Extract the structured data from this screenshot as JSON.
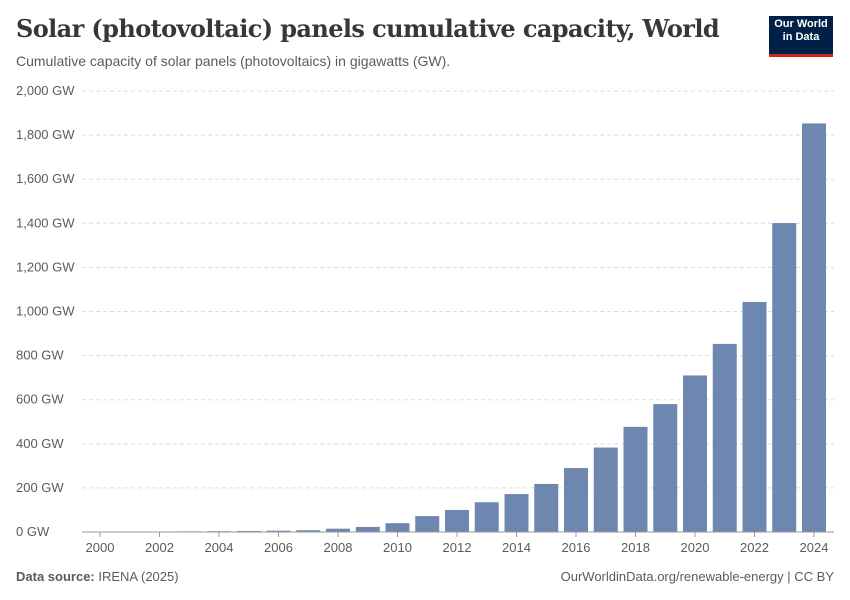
{
  "header": {
    "title": "Solar (photovoltaic) panels cumulative capacity, World",
    "subtitle": "Cumulative capacity of solar panels (photovoltaics) in gigawatts (GW).",
    "logo": "Our World in Data"
  },
  "footer": {
    "source_label": "Data source:",
    "source": "IRENA (2025)",
    "link": "OurWorldinData.org/renewable-energy | CC BY"
  },
  "colors": {
    "bar": "#6d87b0",
    "grid": "#dddddd",
    "text": "#5b5b5b"
  },
  "chart_data": {
    "type": "bar",
    "title": "Solar (photovoltaic) panels cumulative capacity, World",
    "subtitle": "Cumulative capacity of solar panels (photovoltaics) in gigawatts (GW).",
    "categories": [
      "2000",
      "2001",
      "2002",
      "2003",
      "2004",
      "2005",
      "2006",
      "2007",
      "2008",
      "2009",
      "2010",
      "2011",
      "2012",
      "2013",
      "2014",
      "2015",
      "2016",
      "2017",
      "2018",
      "2019",
      "2020",
      "2021",
      "2022",
      "2023",
      "2024"
    ],
    "values": [
      1.2,
      1.5,
      2.2,
      2.8,
      3.7,
      4.5,
      6,
      8,
      15,
      23,
      40,
      72,
      100,
      135,
      172,
      218,
      290,
      383,
      477,
      580,
      710,
      853,
      1043,
      1401,
      1853
    ],
    "unit": "GW",
    "ylim": [
      0,
      2000
    ],
    "yticks": [
      "0 GW",
      "200 GW",
      "400 GW",
      "600 GW",
      "800 GW",
      "1,000 GW",
      "1,200 GW",
      "1,400 GW",
      "1,600 GW",
      "1,800 GW",
      "2,000 GW"
    ],
    "xticks": [
      "2000",
      "2002",
      "2004",
      "2006",
      "2008",
      "2010",
      "2012",
      "2014",
      "2016",
      "2018",
      "2020",
      "2022",
      "2024"
    ],
    "grid": true,
    "legend": "none"
  }
}
